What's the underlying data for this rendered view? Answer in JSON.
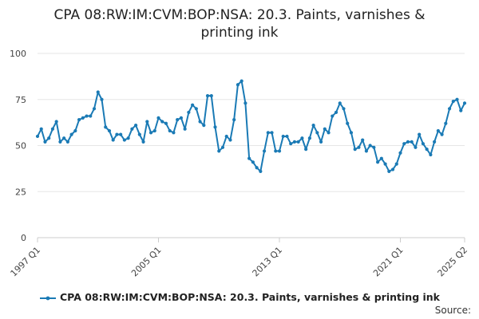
{
  "chart_data": {
    "type": "line",
    "title": "CPA 08:RW:IM:CVM:BOP:NSA: 20.3. Paints, varnishes & printing ink",
    "title_lines": [
      "CPA 08:RW:IM:CVM:BOP:NSA: 20.3. Paints, varnishes &",
      "printing ink"
    ],
    "xlabel": "",
    "ylabel": "",
    "ylim": [
      0,
      100
    ],
    "yticks": [
      0,
      25,
      50,
      75,
      100
    ],
    "xticks": [
      {
        "label": "1997 Q1",
        "index": 0
      },
      {
        "label": "2005 Q1",
        "index": 32
      },
      {
        "label": "2013 Q1",
        "index": 64
      },
      {
        "label": "2021 Q1",
        "index": 96
      },
      {
        "label": "2025 Q2",
        "index": 113
      }
    ],
    "x_start": "1997 Q1",
    "x_end": "2025 Q2",
    "grid": true,
    "legend_position": "bottom",
    "series": [
      {
        "name": "CPA 08:RW:IM:CVM:BOP:NSA: 20.3. Paints, varnishes & printing ink",
        "color": "#1a7ab5",
        "values": [
          55,
          59,
          52,
          54,
          59,
          63,
          52,
          54,
          52,
          56,
          58,
          64,
          65,
          66,
          66,
          70,
          79,
          75,
          60,
          58,
          53,
          56,
          56,
          53,
          54,
          59,
          61,
          56,
          52,
          63,
          57,
          58,
          65,
          63,
          62,
          58,
          57,
          64,
          65,
          59,
          68,
          72,
          70,
          63,
          61,
          77,
          77,
          60,
          47,
          49,
          55,
          53,
          64,
          83,
          85,
          73,
          43,
          41,
          38,
          36,
          47,
          57,
          57,
          47,
          47,
          55,
          55,
          51,
          52,
          52,
          54,
          48,
          54,
          61,
          57,
          52,
          59,
          57,
          66,
          68,
          73,
          70,
          62,
          57,
          48,
          49,
          53,
          47,
          50,
          49,
          41,
          43,
          40,
          36,
          37,
          40,
          46,
          51,
          52,
          52,
          49,
          56,
          51,
          48,
          45,
          52,
          58,
          56,
          62,
          70,
          74,
          75,
          69,
          73
        ]
      }
    ]
  },
  "source_label": "Source:"
}
